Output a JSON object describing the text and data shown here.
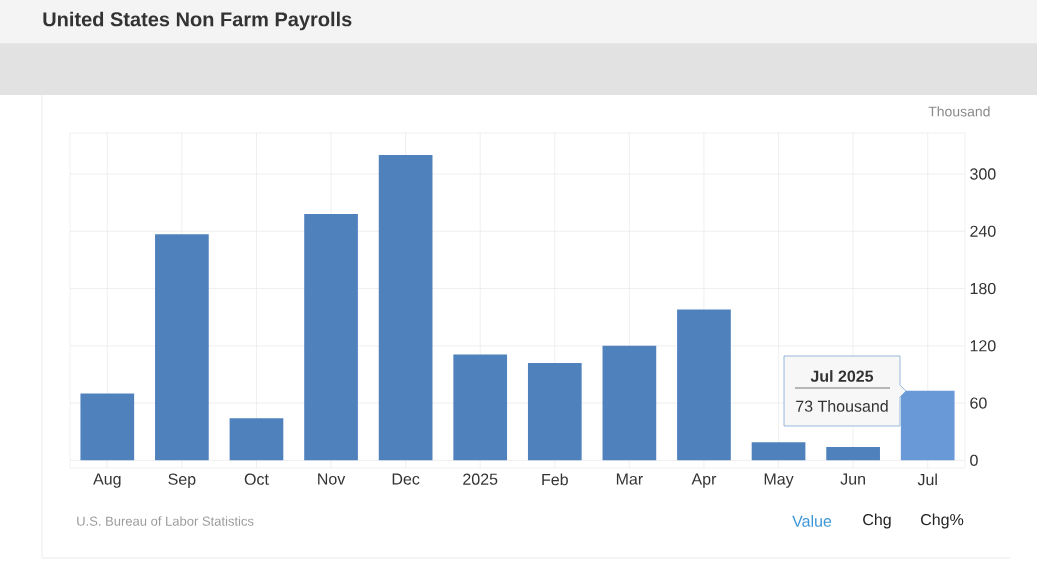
{
  "chart_data": {
    "type": "bar",
    "title": "United States Non Farm Payrolls",
    "ylabel": "Thousand",
    "categories": [
      "Aug",
      "Sep",
      "Oct",
      "Nov",
      "Dec",
      "2025",
      "Feb",
      "Mar",
      "Apr",
      "May",
      "Jun",
      "Jul"
    ],
    "values": [
      70,
      237,
      44,
      258,
      320,
      111,
      102,
      120,
      158,
      19,
      14,
      73
    ],
    "colors": [
      "#4f81bd",
      "#4f81bd",
      "#4f81bd",
      "#4f81bd",
      "#4f81bd",
      "#4f81bd",
      "#4f81bd",
      "#4f81bd",
      "#4f81bd",
      "#4f81bd",
      "#4f81bd",
      "#6999d6"
    ],
    "ylim": [
      -8,
      343
    ],
    "yticks": [
      0,
      60,
      120,
      180,
      240,
      300
    ],
    "grid": true,
    "annotations": [
      "Jul 2025",
      "73 Thousand",
      "U.S. Bureau of Labor Statistics",
      "Value",
      "Chg",
      "Chg%"
    ]
  }
}
